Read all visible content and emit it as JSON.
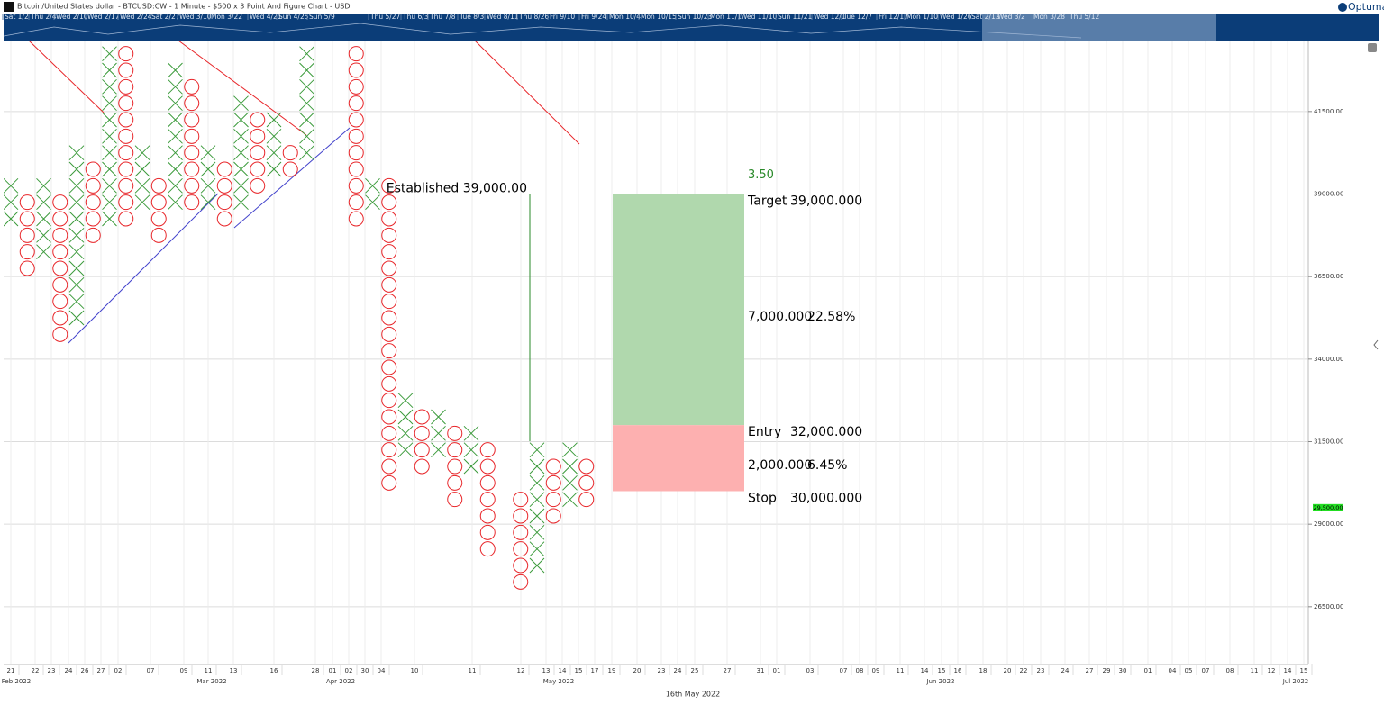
{
  "window_title": "Bitcoin/United States dollar - BTCUSD:CW - 1 Minute - $500 x 3 Point And Figure Chart - USD",
  "logo": "Optuma",
  "navigator_labels": [
    "Sat 1/2",
    "Thu 2/4",
    "Wed 2/10",
    "Wed 2/17",
    "Wed 2/24",
    "Sat 2/27",
    "Wed 3/10",
    "Mon 3/22",
    "Wed 4/21",
    "Sun 4/25",
    "Sun 5/9",
    "Thu 5/27",
    "Thu 6/3",
    "Thu 7/8",
    "Tue 8/3",
    "Wed 8/11",
    "Thu 8/26",
    "Fri 9/10",
    "Fri 9/24",
    "Mon 10/4",
    "Mon 10/15",
    "Sun 10/23",
    "Mon 11/1",
    "Wed 11/10",
    "Sun 11/21",
    "Wed 12/1",
    "Tue 12/7",
    "Fri 12/17",
    "Mon 1/10",
    "Wed 1/26",
    "Sat 2/12",
    "Wed 3/2",
    "Mon 3/28",
    "Thu 5/12"
  ],
  "chart_data": {
    "type": "point-and-figure",
    "box_size": 500,
    "x_color": "#3a9a3a",
    "o_color": "#e8262a",
    "columns": [
      {
        "kind": "X",
        "low": 38000,
        "high": 39500
      },
      {
        "kind": "O",
        "low": 36500,
        "high": 39000
      },
      {
        "kind": "X",
        "low": 37000,
        "high": 39500
      },
      {
        "kind": "O",
        "low": 34500,
        "high": 39000
      },
      {
        "kind": "X",
        "low": 35000,
        "high": 40500
      },
      {
        "kind": "O",
        "low": 37500,
        "high": 40000
      },
      {
        "kind": "X",
        "low": 38000,
        "high": 43500
      },
      {
        "kind": "O",
        "low": 38000,
        "high": 43500
      },
      {
        "kind": "X",
        "low": 38500,
        "high": 40500
      },
      {
        "kind": "O",
        "low": 37500,
        "high": 39500
      },
      {
        "kind": "X",
        "low": 38500,
        "high": 43000
      },
      {
        "kind": "O",
        "low": 38500,
        "high": 42500
      },
      {
        "kind": "X",
        "low": 38500,
        "high": 40500
      },
      {
        "kind": "O",
        "low": 38000,
        "high": 40000
      },
      {
        "kind": "X",
        "low": 38500,
        "high": 42000
      },
      {
        "kind": "O",
        "low": 39000,
        "high": 41500
      },
      {
        "kind": "X",
        "low": 39500,
        "high": 41500
      },
      {
        "kind": "O",
        "low": 39500,
        "high": 40500
      },
      {
        "kind": "X",
        "low": 40000,
        "high": 43500
      },
      null,
      null,
      {
        "kind": "O",
        "low": 38000,
        "high": 43500
      },
      {
        "kind": "X",
        "low": 38500,
        "high": 39500
      },
      {
        "kind": "O",
        "low": 30000,
        "high": 39500
      },
      {
        "kind": "X",
        "low": 31000,
        "high": 33000
      },
      {
        "kind": "O",
        "low": 30500,
        "high": 32500
      },
      {
        "kind": "X",
        "low": 31000,
        "high": 32500
      },
      {
        "kind": "O",
        "low": 29500,
        "high": 32000
      },
      {
        "kind": "X",
        "low": 30500,
        "high": 32000
      },
      {
        "kind": "O",
        "low": 28000,
        "high": 31500
      },
      null,
      {
        "kind": "O",
        "low": 27000,
        "high": 30000
      },
      {
        "kind": "X",
        "low": 27500,
        "high": 31500
      },
      {
        "kind": "O",
        "low": 29000,
        "high": 31000
      },
      {
        "kind": "X",
        "low": 29500,
        "high": 31500
      },
      {
        "kind": "O",
        "low": 29500,
        "high": 31000
      }
    ],
    "ylim": [
      24750,
      43650
    ],
    "yticks": [
      {
        "value": 26500,
        "label": "26500.00"
      },
      {
        "value": 29000,
        "label": "29000.00"
      },
      {
        "value": 31500,
        "label": "31500.00"
      },
      {
        "value": 34000,
        "label": "34000.00"
      },
      {
        "value": 36500,
        "label": "36500.00"
      },
      {
        "value": 39000,
        "label": "39000.00"
      },
      {
        "value": 41500,
        "label": "41500.00"
      }
    ],
    "grid": true,
    "x_day_labels": [
      "21",
      "22",
      "23",
      "24",
      "26",
      "27",
      "02",
      "07",
      "09",
      "11",
      "13",
      "16",
      "28",
      "01",
      "02",
      "30",
      "04",
      "10",
      "11",
      "12",
      "13",
      "14",
      "15",
      "17",
      "19",
      "20",
      "23",
      "24",
      "25",
      "27",
      "31",
      "01",
      "03",
      "07",
      "08",
      "09",
      "11",
      "14",
      "15",
      "16",
      "18",
      "20",
      "22",
      "23",
      "24",
      "27",
      "29",
      "30",
      "01",
      "04",
      "05",
      "07",
      "08",
      "11",
      "12",
      "14",
      "15"
    ],
    "x_month_labels": [
      "Feb 2022",
      "Mar 2022",
      "Apr 2022",
      "May 2022",
      "Jun 2022",
      "Jul 2022"
    ],
    "x_caption": "16th May 2022",
    "last_price": 29500,
    "last_price_label": "29,500.00",
    "annotation": "Established 39,000.00",
    "established": 39000,
    "position": {
      "ratio": "3.50",
      "target_label": "Target",
      "target": 39000,
      "target_text": "39,000.000",
      "reward_text": "7,000.000",
      "reward_pct": "22.58%",
      "entry_label": "Entry",
      "entry": 32000,
      "entry_text": "32,000.000",
      "risk_text": "2,000.000",
      "risk_pct": "6.45%",
      "stop_label": "Stop",
      "stop": 30000,
      "stop_text": "30,000.000"
    }
  }
}
